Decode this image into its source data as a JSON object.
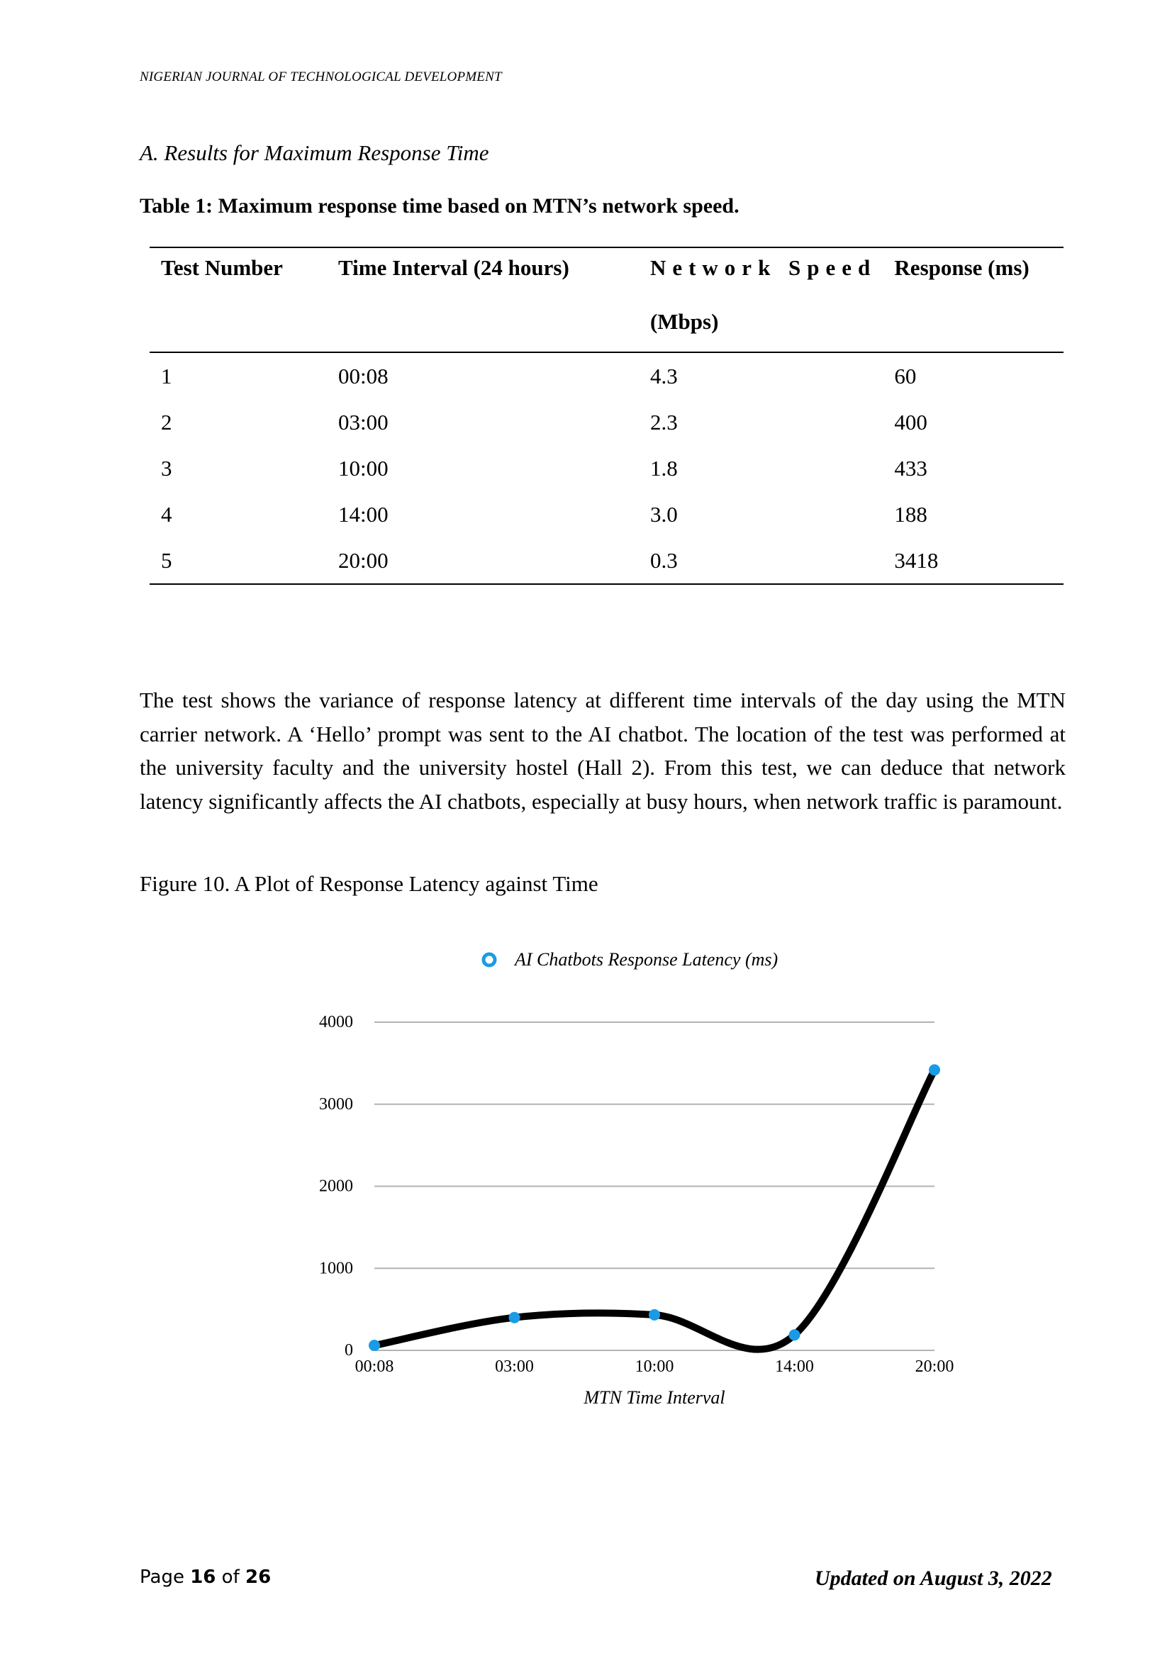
{
  "header": {
    "journal": "NIGERIAN JOURNAL OF TECHNOLOGICAL DEVELOPMENT"
  },
  "section_title": "A. Results for Maximum Response Time",
  "table": {
    "caption": "Table 1: Maximum response time based on MTN’s network speed.",
    "headers": {
      "test_number": "Test Number",
      "time_interval": "Time Interval (24 hours)",
      "network_speed_line1": "Network Speed",
      "network_speed_line2": "(Mbps)",
      "response": "Response (ms)"
    },
    "rows": [
      [
        "1",
        "00:08",
        "4.3",
        "60"
      ],
      [
        "2",
        "03:00",
        "2.3",
        "400"
      ],
      [
        "3",
        "10:00",
        "1.8",
        "433"
      ],
      [
        "4",
        "14:00",
        "3.0",
        "188"
      ],
      [
        "5",
        "20:00",
        "0.3",
        "3418"
      ]
    ]
  },
  "paragraph": "The test shows the variance of response latency at different time intervals of the day using the MTN carrier network. A ‘Hello’ prompt was sent to the AI chatbot. The location of the test was performed at the university faculty and the university hostel (Hall 2). From this test, we can deduce that network latency significantly affects the AI chatbots, especially at busy hours, when network traffic is paramount.",
  "figure_caption": "Figure 10. A Plot of Response Latency against Time",
  "chart_data": {
    "type": "line",
    "title": "",
    "categories": [
      "00:08",
      "03:00",
      "10:00",
      "14:00",
      "20:00"
    ],
    "series": [
      {
        "name": "AI Chatbots Response Latency (ms)",
        "values": [
          60,
          400,
          433,
          188,
          3418
        ]
      }
    ],
    "xlabel": "MTN Time Interval",
    "ylabel": "",
    "ylim": [
      0,
      4000
    ],
    "yticks": [
      "0",
      "1000",
      "2000",
      "3000",
      "4000"
    ],
    "grid": true,
    "legend": "top-center",
    "smooth": true,
    "line_color": "#000000",
    "marker_color": "#1a9be6",
    "grid_color": "#b3b3b3"
  },
  "footer": {
    "page_prefix": "Page",
    "page_num": "16",
    "page_of": "of",
    "page_total": "26",
    "updated": "Updated on August 3, 2022"
  }
}
